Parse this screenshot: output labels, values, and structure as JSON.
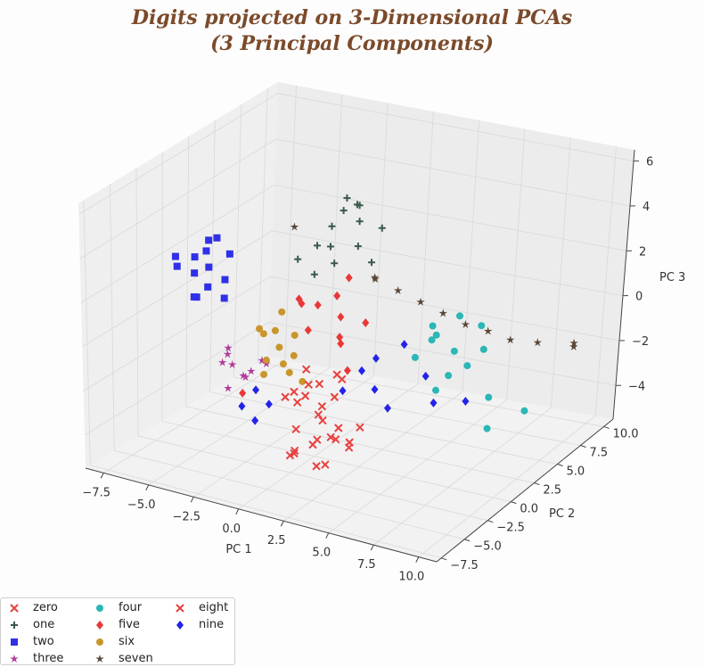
{
  "title_line1": "Digits projected on 3-Dimensional PCAs",
  "title_line2": "(3 Principal Components)",
  "chart_data": {
    "type": "scatter",
    "dimensions": 3,
    "xlabel": "PC 1",
    "ylabel": "PC 2",
    "zlabel": "PC 3",
    "xticks": [
      "−7.5",
      "−5.0",
      "−2.5",
      "0.0",
      "2.5",
      "5.0",
      "7.5",
      "10.0"
    ],
    "yticks": [
      "−7.5",
      "−5.0",
      "−2.5",
      "0.0",
      "2.5",
      "5.0",
      "7.5",
      "10.0"
    ],
    "zticks": [
      "−4",
      "−2",
      "0",
      "2",
      "4",
      "6"
    ],
    "xlim": [
      -8.5,
      11
    ],
    "ylim": [
      -8,
      11
    ],
    "zlim": [
      -5.5,
      6.5
    ],
    "grid": true,
    "legend_position": "bottom-left",
    "series": [
      {
        "name": "zero",
        "marker": "x",
        "color": "#e8413f",
        "values": [
          [
            2.0,
            -4.0,
            -3.3
          ],
          [
            3.0,
            -3.5,
            -3.0
          ],
          [
            1.5,
            -5.0,
            -3.5
          ],
          [
            2.5,
            -4.5,
            -2.8
          ],
          [
            3.5,
            -3.0,
            -3.2
          ],
          [
            1.0,
            -4.0,
            -3.8
          ],
          [
            2.0,
            -3.0,
            -2.5
          ],
          [
            4.0,
            -4.0,
            -3.0
          ],
          [
            3.0,
            -5.5,
            -3.6
          ],
          [
            0.8,
            -3.5,
            -3.0
          ],
          [
            2.2,
            -2.5,
            -3.4
          ],
          [
            3.8,
            -2.5,
            -2.6
          ],
          [
            1.8,
            -6.0,
            -3.2
          ],
          [
            2.8,
            -4.2,
            -4.0
          ],
          [
            3.3,
            -3.8,
            -2.3
          ]
        ]
      },
      {
        "name": "one",
        "marker": "plus",
        "color": "#3b5a4a",
        "values": [
          [
            -1.5,
            4.0,
            2.5
          ],
          [
            -2.0,
            5.0,
            3.0
          ],
          [
            -1.0,
            3.5,
            2.0
          ],
          [
            -0.5,
            5.0,
            3.5
          ],
          [
            -2.5,
            4.5,
            2.2
          ],
          [
            -1.2,
            6.0,
            3.8
          ],
          [
            0.0,
            4.0,
            2.8
          ],
          [
            -1.8,
            3.0,
            1.5
          ],
          [
            -0.8,
            5.5,
            4.0
          ],
          [
            -2.2,
            6.5,
            3.2
          ],
          [
            0.5,
            4.5,
            2.0
          ],
          [
            -3.0,
            3.5,
            1.8
          ],
          [
            -1.5,
            5.5,
            4.2
          ],
          [
            0.2,
            6.0,
            3.0
          ]
        ]
      },
      {
        "name": "two",
        "marker": "square",
        "color": "#3030e8",
        "values": [
          [
            -7.0,
            0.5,
            2.0
          ],
          [
            -6.5,
            1.0,
            1.5
          ],
          [
            -7.5,
            -0.5,
            2.2
          ],
          [
            -6.0,
            0.0,
            1.0
          ],
          [
            -6.8,
            1.5,
            2.5
          ],
          [
            -5.5,
            0.8,
            1.2
          ],
          [
            -7.2,
            2.0,
            1.8
          ],
          [
            -6.2,
            -1.0,
            0.8
          ],
          [
            -5.8,
            1.8,
            2.0
          ],
          [
            -7.8,
            0.2,
            1.5
          ],
          [
            -6.5,
            -0.2,
            0.5
          ],
          [
            -5.2,
            0.2,
            0.6
          ],
          [
            -6.9,
            2.5,
            2.3
          ],
          [
            -7.4,
            1.2,
            1.0
          ]
        ]
      },
      {
        "name": "three",
        "marker": "star",
        "color": "#b03a9a",
        "values": [
          [
            -3.0,
            -3.0,
            -1.0
          ],
          [
            -2.5,
            -2.0,
            -1.5
          ],
          [
            -3.5,
            -2.5,
            -0.5
          ],
          [
            -2.0,
            -3.5,
            -1.2
          ],
          [
            -3.2,
            -1.5,
            -2.0
          ],
          [
            -1.8,
            -2.2,
            -0.8
          ],
          [
            -2.8,
            -3.8,
            -1.8
          ],
          [
            -3.8,
            -2.0,
            -1.0
          ],
          [
            -2.2,
            -1.0,
            -1.4
          ],
          [
            -3.0,
            -4.0,
            -0.6
          ]
        ]
      },
      {
        "name": "four",
        "marker": "circle",
        "color": "#2ab7b5",
        "values": [
          [
            5.0,
            2.5,
            0.0
          ],
          [
            6.0,
            3.0,
            -0.5
          ],
          [
            5.5,
            2.0,
            0.5
          ],
          [
            6.5,
            1.5,
            -1.0
          ],
          [
            4.5,
            3.5,
            0.2
          ],
          [
            7.0,
            2.5,
            -0.8
          ],
          [
            5.8,
            3.8,
            0.8
          ],
          [
            6.2,
            0.8,
            -1.5
          ],
          [
            4.8,
            1.2,
            -0.4
          ],
          [
            7.5,
            3.2,
            -0.2
          ],
          [
            8.5,
            2.0,
            -1.8
          ],
          [
            10.0,
            3.0,
            -2.5
          ],
          [
            9.0,
            1.0,
            -2.8
          ],
          [
            6.8,
            4.2,
            0.4
          ]
        ]
      },
      {
        "name": "five",
        "marker": "diamond",
        "color": "#e83838",
        "values": [
          [
            -0.5,
            1.0,
            1.0
          ],
          [
            0.5,
            1.5,
            0.5
          ],
          [
            -1.0,
            0.0,
            1.5
          ],
          [
            1.0,
            0.5,
            0.0
          ],
          [
            0.0,
            2.0,
            1.2
          ],
          [
            -1.5,
            1.2,
            0.8
          ],
          [
            1.5,
            2.2,
            0.2
          ],
          [
            -0.2,
            -0.5,
            0.4
          ],
          [
            0.8,
            1.0,
            -0.5
          ],
          [
            -3.5,
            -1.0,
            -3.0
          ],
          [
            2.0,
            -0.5,
            -1.0
          ],
          [
            0.2,
            2.8,
            1.8
          ]
        ]
      },
      {
        "name": "six",
        "marker": "circle",
        "color": "#c8962a",
        "values": [
          [
            -1.5,
            -1.0,
            -0.5
          ],
          [
            -2.0,
            -0.5,
            0.0
          ],
          [
            -1.0,
            -1.5,
            -1.0
          ],
          [
            -2.5,
            -1.2,
            0.2
          ],
          [
            -1.2,
            0.0,
            -0.2
          ],
          [
            -0.5,
            -1.8,
            -1.2
          ],
          [
            -2.2,
            0.5,
            0.5
          ],
          [
            -1.8,
            -2.0,
            -1.5
          ],
          [
            -0.8,
            -0.8,
            -0.8
          ],
          [
            -2.8,
            -0.2,
            -0.4
          ],
          [
            -1.4,
            -2.5,
            -0.6
          ],
          [
            -0.2,
            -1.0,
            -1.8
          ]
        ]
      },
      {
        "name": "seven",
        "marker": "star",
        "color": "#5a4636",
        "values": [
          [
            1.0,
            4.0,
            1.5
          ],
          [
            2.0,
            4.5,
            1.0
          ],
          [
            3.0,
            5.0,
            0.5
          ],
          [
            4.0,
            5.5,
            0.0
          ],
          [
            5.0,
            6.0,
            -0.5
          ],
          [
            6.0,
            6.5,
            -0.8
          ],
          [
            7.0,
            7.0,
            -1.2
          ],
          [
            8.0,
            8.0,
            -1.5
          ],
          [
            9.5,
            9.0,
            -1.8
          ],
          [
            10.0,
            8.0,
            -1.2
          ],
          [
            -3.5,
            4.0,
            3.0
          ],
          [
            1.5,
            3.0,
            2.0
          ]
        ]
      },
      {
        "name": "eight",
        "marker": "x",
        "color": "#e8413f",
        "values": [
          [
            0.5,
            -2.0,
            -2.0
          ],
          [
            1.0,
            -1.5,
            -1.5
          ],
          [
            1.5,
            -2.5,
            -2.5
          ],
          [
            0.0,
            -1.0,
            -1.2
          ],
          [
            2.0,
            -1.8,
            -1.8
          ],
          [
            -0.5,
            -2.2,
            -2.2
          ],
          [
            1.2,
            -3.0,
            -1.0
          ],
          [
            0.8,
            -0.8,
            -2.8
          ],
          [
            1.8,
            -1.2,
            -1.0
          ],
          [
            0.3,
            -2.8,
            -1.6
          ],
          [
            2.5,
            -2.0,
            -0.8
          ],
          [
            -0.2,
            -1.5,
            -2.6
          ]
        ]
      },
      {
        "name": "nine",
        "marker": "diamond",
        "color": "#2424e8",
        "values": [
          [
            2.0,
            1.0,
            -1.5
          ],
          [
            3.0,
            0.5,
            -2.0
          ],
          [
            1.5,
            0.0,
            -2.2
          ],
          [
            2.5,
            1.5,
            -1.0
          ],
          [
            -3.0,
            -2.0,
            -3.2
          ],
          [
            -2.5,
            -1.5,
            -2.5
          ],
          [
            -1.5,
            -2.0,
            -2.8
          ],
          [
            4.0,
            0.0,
            -2.5
          ],
          [
            5.0,
            2.0,
            -1.5
          ],
          [
            6.0,
            1.0,
            -2.2
          ],
          [
            7.5,
            1.5,
            -2.0
          ],
          [
            3.5,
            2.5,
            -0.5
          ],
          [
            -2.0,
            -2.5,
            -3.5
          ]
        ]
      }
    ]
  }
}
